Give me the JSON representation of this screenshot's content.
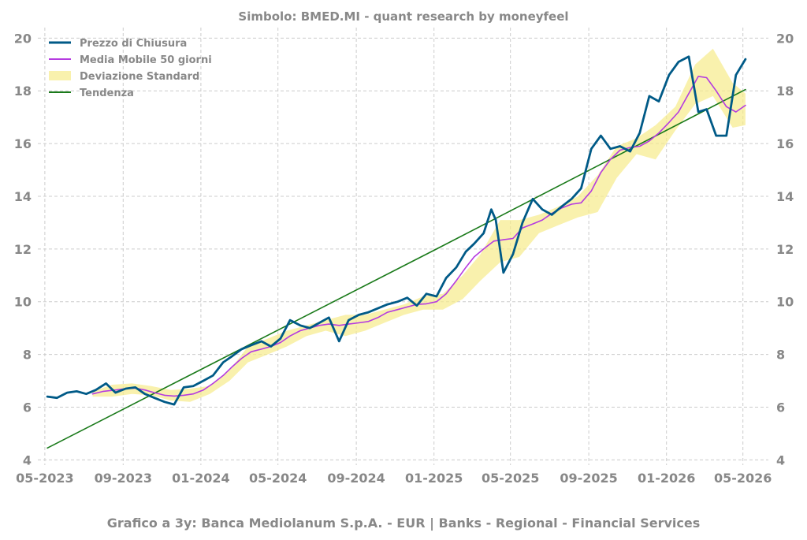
{
  "title": "Simbolo: BMED.MI - quant research by moneyfeel",
  "footer": "Grafico a 3y: Banca Mediolanum S.p.A. - EUR | Banks - Regional - Financial Services",
  "colors": {
    "price": "#005a87",
    "ma": "#b53be0",
    "std": "#f7eb8a",
    "trend": "#1a7a1a",
    "grid": "#cccccc",
    "text": "#888888"
  },
  "chart_data": {
    "type": "line",
    "title": "Simbolo: BMED.MI - quant research by moneyfeel",
    "xlabel": "",
    "ylabel": "",
    "xlim": [
      "2023-04-20",
      "2026-06-10"
    ],
    "ylim": [
      3.8,
      20.4
    ],
    "x_ticks": [
      "2023-05-01",
      "2023-09-01",
      "2024-01-01",
      "2024-05-01",
      "2024-09-01",
      "2025-01-01",
      "2025-05-01",
      "2025-09-01",
      "2026-01-01",
      "2026-05-01"
    ],
    "x_tick_labels": [
      "05-2023",
      "09-2023",
      "01-2024",
      "05-2024",
      "09-2024",
      "01-2025",
      "05-2025",
      "09-2025",
      "01-2026",
      "05-2026"
    ],
    "y_ticks": [
      4,
      6,
      8,
      10,
      12,
      14,
      16,
      18,
      20
    ],
    "y_tick_labels": [
      "4",
      "6",
      "8",
      "10",
      "12",
      "14",
      "16",
      "18",
      "20"
    ],
    "grid": true,
    "legend_position": "top-left",
    "series": [
      {
        "name": "Prezzo di Chiusura",
        "kind": "line",
        "x": [
          "2023-05-05",
          "2023-05-20",
          "2023-06-05",
          "2023-06-20",
          "2023-07-05",
          "2023-07-20",
          "2023-08-05",
          "2023-08-20",
          "2023-09-05",
          "2023-09-20",
          "2023-10-05",
          "2023-10-20",
          "2023-11-05",
          "2023-11-20",
          "2023-12-05",
          "2023-12-20",
          "2024-01-05",
          "2024-01-20",
          "2024-02-05",
          "2024-02-20",
          "2024-03-05",
          "2024-03-20",
          "2024-04-05",
          "2024-04-20",
          "2024-05-05",
          "2024-05-20",
          "2024-06-05",
          "2024-06-20",
          "2024-07-05",
          "2024-07-20",
          "2024-08-05",
          "2024-08-20",
          "2024-09-05",
          "2024-09-20",
          "2024-10-05",
          "2024-10-20",
          "2024-11-05",
          "2024-11-20",
          "2024-12-05",
          "2024-12-20",
          "2025-01-05",
          "2025-01-20",
          "2025-02-05",
          "2025-02-20",
          "2025-03-05",
          "2025-03-20",
          "2025-04-01",
          "2025-04-08",
          "2025-04-20",
          "2025-05-05",
          "2025-05-20",
          "2025-06-05",
          "2025-06-20",
          "2025-07-05",
          "2025-07-20",
          "2025-08-05",
          "2025-08-20",
          "2025-09-05",
          "2025-09-20",
          "2025-10-05",
          "2025-10-20",
          "2025-11-05",
          "2025-11-20",
          "2025-12-05",
          "2025-12-20",
          "2026-01-05",
          "2026-01-20",
          "2026-02-05",
          "2026-02-20",
          "2026-03-05",
          "2026-03-20",
          "2026-04-05",
          "2026-04-20",
          "2026-05-05"
        ],
        "values": [
          6.4,
          6.35,
          6.55,
          6.6,
          6.5,
          6.65,
          6.9,
          6.55,
          6.7,
          6.75,
          6.5,
          6.35,
          6.2,
          6.1,
          6.75,
          6.8,
          7.0,
          7.2,
          7.7,
          7.95,
          8.2,
          8.35,
          8.5,
          8.3,
          8.6,
          9.3,
          9.1,
          9.0,
          9.2,
          9.4,
          8.5,
          9.3,
          9.5,
          9.6,
          9.75,
          9.9,
          10.0,
          10.15,
          9.85,
          10.3,
          10.2,
          10.9,
          11.3,
          11.9,
          12.2,
          12.6,
          13.5,
          13.1,
          11.1,
          11.8,
          13.0,
          13.9,
          13.5,
          13.3,
          13.6,
          13.9,
          14.3,
          15.8,
          16.3,
          15.8,
          15.9,
          15.7,
          16.4,
          17.8,
          17.6,
          18.6,
          19.1,
          19.3,
          17.2,
          17.3,
          16.3,
          16.3,
          18.6,
          19.2
        ]
      },
      {
        "name": "Media Mobile 50 giorni",
        "kind": "line",
        "x": [
          "2023-07-15",
          "2023-08-01",
          "2023-08-20",
          "2023-09-05",
          "2023-09-20",
          "2023-10-05",
          "2023-10-20",
          "2023-11-05",
          "2023-11-20",
          "2023-12-05",
          "2023-12-20",
          "2024-01-05",
          "2024-01-20",
          "2024-02-05",
          "2024-02-20",
          "2024-03-05",
          "2024-03-20",
          "2024-04-05",
          "2024-04-20",
          "2024-05-05",
          "2024-05-20",
          "2024-06-05",
          "2024-06-20",
          "2024-07-05",
          "2024-07-20",
          "2024-08-05",
          "2024-08-20",
          "2024-09-05",
          "2024-09-20",
          "2024-10-05",
          "2024-10-20",
          "2024-11-05",
          "2024-11-20",
          "2024-12-05",
          "2024-12-20",
          "2025-01-05",
          "2025-01-20",
          "2025-02-05",
          "2025-02-20",
          "2025-03-05",
          "2025-03-20",
          "2025-04-05",
          "2025-04-20",
          "2025-05-05",
          "2025-05-20",
          "2025-06-05",
          "2025-06-20",
          "2025-07-05",
          "2025-07-20",
          "2025-08-05",
          "2025-08-20",
          "2025-09-05",
          "2025-09-20",
          "2025-10-05",
          "2025-10-20",
          "2025-11-05",
          "2025-11-20",
          "2025-12-05",
          "2025-12-20",
          "2026-01-05",
          "2026-01-20",
          "2026-02-05",
          "2026-02-20",
          "2026-03-05",
          "2026-03-20",
          "2026-04-05",
          "2026-04-20",
          "2026-05-05"
        ],
        "values": [
          6.5,
          6.6,
          6.65,
          6.7,
          6.72,
          6.65,
          6.55,
          6.45,
          6.42,
          6.45,
          6.5,
          6.65,
          6.9,
          7.2,
          7.55,
          7.85,
          8.1,
          8.2,
          8.3,
          8.45,
          8.7,
          8.9,
          9.0,
          9.1,
          9.15,
          9.1,
          9.15,
          9.2,
          9.25,
          9.4,
          9.6,
          9.7,
          9.8,
          9.9,
          9.92,
          10.0,
          10.3,
          10.8,
          11.3,
          11.7,
          12.0,
          12.3,
          12.35,
          12.4,
          12.8,
          12.95,
          13.1,
          13.35,
          13.55,
          13.7,
          13.75,
          14.2,
          14.9,
          15.4,
          15.75,
          15.85,
          15.9,
          16.1,
          16.4,
          16.8,
          17.2,
          17.9,
          18.55,
          18.5,
          18.0,
          17.4,
          17.2,
          17.45
        ]
      },
      {
        "name": "Deviazione Standard",
        "kind": "band",
        "x": [
          "2023-07-15",
          "2023-08-15",
          "2023-09-15",
          "2023-10-15",
          "2023-11-15",
          "2023-12-15",
          "2024-01-15",
          "2024-02-15",
          "2024-03-15",
          "2024-04-15",
          "2024-05-15",
          "2024-06-15",
          "2024-07-15",
          "2024-08-15",
          "2024-09-15",
          "2024-10-15",
          "2024-11-15",
          "2024-12-15",
          "2025-01-15",
          "2025-02-15",
          "2025-03-15",
          "2025-04-15",
          "2025-05-15",
          "2025-06-15",
          "2025-07-15",
          "2025-08-15",
          "2025-09-15",
          "2025-10-15",
          "2025-11-15",
          "2025-12-15",
          "2026-01-15",
          "2026-02-15",
          "2026-03-15",
          "2026-04-15",
          "2026-05-05"
        ],
        "lower": [
          6.4,
          6.4,
          6.5,
          6.45,
          6.25,
          6.2,
          6.5,
          7.0,
          7.7,
          8.0,
          8.3,
          8.7,
          8.9,
          8.7,
          8.9,
          9.2,
          9.5,
          9.7,
          9.7,
          10.1,
          10.8,
          11.5,
          11.7,
          12.6,
          12.9,
          13.2,
          13.4,
          14.7,
          15.6,
          15.4,
          16.5,
          17.5,
          17.8,
          16.6,
          16.7
        ],
        "upper": [
          6.6,
          6.85,
          6.9,
          6.8,
          6.65,
          6.7,
          6.8,
          7.4,
          8.3,
          8.6,
          8.9,
          9.1,
          9.3,
          9.5,
          9.5,
          9.7,
          9.9,
          10.2,
          10.3,
          11.0,
          11.8,
          13.1,
          13.1,
          13.3,
          13.6,
          14.0,
          14.8,
          15.9,
          16.2,
          16.7,
          17.4,
          19.0,
          19.6,
          18.3,
          17.9
        ]
      },
      {
        "name": "Tendenza",
        "kind": "line",
        "x": [
          "2023-05-05",
          "2025-01-01",
          "2026-05-05"
        ],
        "values": [
          4.45,
          11.95,
          18.05
        ]
      }
    ]
  }
}
